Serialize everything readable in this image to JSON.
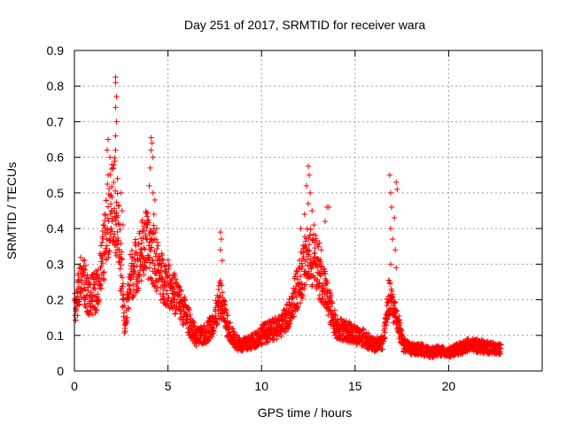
{
  "chart_data": {
    "type": "scatter",
    "title": "Day 251 of 2017, SRMTID for receiver wara",
    "xlabel": "GPS time / hours",
    "ylabel": "SRMTID / TECUs",
    "xlim": [
      0,
      25
    ],
    "ylim": [
      0,
      0.9
    ],
    "xticks": [
      0,
      5,
      10,
      15,
      20
    ],
    "yticks": [
      0,
      0.1,
      0.2,
      0.3,
      0.4,
      0.5,
      0.6,
      0.7,
      0.8,
      0.9
    ],
    "ytick_labels": [
      "0",
      "0.1",
      "0.2",
      "0.3",
      "0.4",
      "0.5",
      "0.6",
      "0.7",
      "0.8",
      "0.9"
    ],
    "grid": true,
    "marker": "plus",
    "color": "#ff0000",
    "series": [
      {
        "name": "SRMTID",
        "profile": [
          [
            0.0,
            0.17
          ],
          [
            0.4,
            0.26
          ],
          [
            0.8,
            0.2
          ],
          [
            1.2,
            0.22
          ],
          [
            1.5,
            0.3
          ],
          [
            1.8,
            0.42
          ],
          [
            2.1,
            0.48
          ],
          [
            2.4,
            0.35
          ],
          [
            2.7,
            0.12
          ],
          [
            3.0,
            0.26
          ],
          [
            3.4,
            0.3
          ],
          [
            3.8,
            0.35
          ],
          [
            4.2,
            0.32
          ],
          [
            4.6,
            0.26
          ],
          [
            5.0,
            0.24
          ],
          [
            5.5,
            0.2
          ],
          [
            6.0,
            0.15
          ],
          [
            6.5,
            0.09
          ],
          [
            7.0,
            0.1
          ],
          [
            7.5,
            0.14
          ],
          [
            7.8,
            0.2
          ],
          [
            8.2,
            0.12
          ],
          [
            8.6,
            0.08
          ],
          [
            9.0,
            0.07
          ],
          [
            9.5,
            0.08
          ],
          [
            10.0,
            0.1
          ],
          [
            10.5,
            0.11
          ],
          [
            11.0,
            0.12
          ],
          [
            11.5,
            0.16
          ],
          [
            12.0,
            0.24
          ],
          [
            12.5,
            0.32
          ],
          [
            13.0,
            0.28
          ],
          [
            13.5,
            0.2
          ],
          [
            14.0,
            0.12
          ],
          [
            14.5,
            0.11
          ],
          [
            15.0,
            0.1
          ],
          [
            15.5,
            0.09
          ],
          [
            16.0,
            0.07
          ],
          [
            16.5,
            0.08
          ],
          [
            16.8,
            0.2
          ],
          [
            17.2,
            0.15
          ],
          [
            17.6,
            0.07
          ],
          [
            18.0,
            0.06
          ],
          [
            18.5,
            0.06
          ],
          [
            19.0,
            0.05
          ],
          [
            19.5,
            0.055
          ],
          [
            20.0,
            0.05
          ],
          [
            20.5,
            0.06
          ],
          [
            21.0,
            0.07
          ],
          [
            21.5,
            0.07
          ],
          [
            22.0,
            0.065
          ],
          [
            22.5,
            0.06
          ],
          [
            22.8,
            0.06
          ]
        ],
        "spikes": [
          [
            2.2,
            0.825
          ],
          [
            2.2,
            0.81
          ],
          [
            2.25,
            0.77
          ],
          [
            2.2,
            0.74
          ],
          [
            2.25,
            0.7
          ],
          [
            2.2,
            0.66
          ],
          [
            2.2,
            0.62
          ],
          [
            1.8,
            0.65
          ],
          [
            1.75,
            0.62
          ],
          [
            1.9,
            0.6
          ],
          [
            2.0,
            0.58
          ],
          [
            1.8,
            0.55
          ],
          [
            2.1,
            0.53
          ],
          [
            2.3,
            0.54
          ],
          [
            2.5,
            0.5
          ],
          [
            2.55,
            0.45
          ],
          [
            2.6,
            0.41
          ],
          [
            1.9,
            0.49
          ],
          [
            2.0,
            0.45
          ],
          [
            4.1,
            0.655
          ],
          [
            4.15,
            0.64
          ],
          [
            4.1,
            0.62
          ],
          [
            4.2,
            0.6
          ],
          [
            4.05,
            0.57
          ],
          [
            4.0,
            0.52
          ],
          [
            4.2,
            0.5
          ],
          [
            4.3,
            0.48
          ],
          [
            4.25,
            0.44
          ],
          [
            3.9,
            0.42
          ],
          [
            3.8,
            0.38
          ],
          [
            3.6,
            0.36
          ],
          [
            4.4,
            0.4
          ],
          [
            7.8,
            0.39
          ],
          [
            7.85,
            0.37
          ],
          [
            7.8,
            0.34
          ],
          [
            7.9,
            0.31
          ],
          [
            12.5,
            0.575
          ],
          [
            12.55,
            0.55
          ],
          [
            12.4,
            0.52
          ],
          [
            12.6,
            0.5
          ],
          [
            12.5,
            0.47
          ],
          [
            12.7,
            0.45
          ],
          [
            12.3,
            0.44
          ],
          [
            12.8,
            0.41
          ],
          [
            12.1,
            0.4
          ],
          [
            12.9,
            0.38
          ],
          [
            13.1,
            0.36
          ],
          [
            13.5,
            0.46
          ],
          [
            13.6,
            0.46
          ],
          [
            13.4,
            0.42
          ],
          [
            13.2,
            0.34
          ],
          [
            16.85,
            0.55
          ],
          [
            16.9,
            0.5
          ],
          [
            17.2,
            0.53
          ],
          [
            17.25,
            0.51
          ],
          [
            16.95,
            0.46
          ],
          [
            17.1,
            0.43
          ],
          [
            16.9,
            0.4
          ],
          [
            17.0,
            0.37
          ],
          [
            17.15,
            0.34
          ],
          [
            16.9,
            0.3
          ],
          [
            17.2,
            0.29
          ]
        ]
      }
    ]
  }
}
